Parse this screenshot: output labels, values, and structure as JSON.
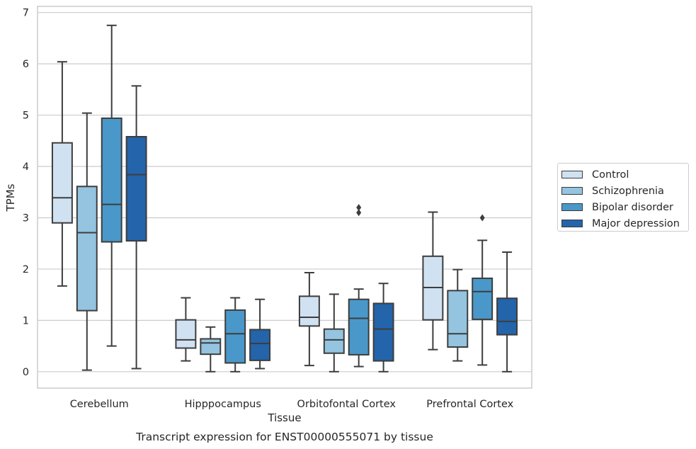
{
  "chart_data": {
    "type": "box",
    "title": "Transcript expression for ENST00000555071 by tissue",
    "xlabel": "Tissue",
    "ylabel": "TPMs",
    "ylim": [
      -0.32,
      7.12
    ],
    "yticks": [
      "0",
      "1",
      "2",
      "3",
      "4",
      "5",
      "6",
      "7"
    ],
    "categories": [
      "Cerebellum",
      "Hipppocampus",
      "Orbitofontal Cortex",
      "Prefrontal Cortex"
    ],
    "grid": true,
    "legend_position": "right",
    "series": [
      {
        "name": "Control",
        "color": "#d0e1f2",
        "boxes": [
          {
            "whislo": 1.67,
            "q1": 2.9,
            "med": 3.39,
            "q3": 4.46,
            "whishi": 6.04,
            "fliers": []
          },
          {
            "whislo": 0.21,
            "q1": 0.46,
            "med": 0.62,
            "q3": 1.01,
            "whishi": 1.44,
            "fliers": []
          },
          {
            "whislo": 0.12,
            "q1": 0.89,
            "med": 1.06,
            "q3": 1.47,
            "whishi": 1.93,
            "fliers": []
          },
          {
            "whislo": 0.43,
            "q1": 1.01,
            "med": 1.64,
            "q3": 2.25,
            "whishi": 3.11,
            "fliers": []
          }
        ]
      },
      {
        "name": "Schizophrenia",
        "color": "#94c4df",
        "boxes": [
          {
            "whislo": 0.03,
            "q1": 1.19,
            "med": 2.71,
            "q3": 3.61,
            "whishi": 5.04,
            "fliers": []
          },
          {
            "whislo": 0.0,
            "q1": 0.34,
            "med": 0.56,
            "q3": 0.64,
            "whishi": 0.87,
            "fliers": []
          },
          {
            "whislo": 0.0,
            "q1": 0.36,
            "med": 0.62,
            "q3": 0.83,
            "whishi": 1.51,
            "fliers": []
          },
          {
            "whislo": 0.21,
            "q1": 0.48,
            "med": 0.74,
            "q3": 1.58,
            "whishi": 1.99,
            "fliers": []
          }
        ]
      },
      {
        "name": "Bipolar disorder",
        "color": "#4a98c9",
        "boxes": [
          {
            "whislo": 0.5,
            "q1": 2.53,
            "med": 3.26,
            "q3": 4.94,
            "whishi": 6.75,
            "fliers": []
          },
          {
            "whislo": 0.0,
            "q1": 0.17,
            "med": 0.74,
            "q3": 1.2,
            "whishi": 1.44,
            "fliers": []
          },
          {
            "whislo": 0.1,
            "q1": 0.33,
            "med": 1.04,
            "q3": 1.41,
            "whishi": 1.61,
            "fliers": [
              3.1,
              3.2
            ]
          },
          {
            "whislo": 0.13,
            "q1": 1.02,
            "med": 1.56,
            "q3": 1.82,
            "whishi": 2.56,
            "fliers": [
              3.0
            ]
          }
        ]
      },
      {
        "name": "Major depression",
        "color": "#2464aa",
        "boxes": [
          {
            "whislo": 0.06,
            "q1": 2.55,
            "med": 3.84,
            "q3": 4.58,
            "whishi": 5.57,
            "fliers": []
          },
          {
            "whislo": 0.06,
            "q1": 0.22,
            "med": 0.55,
            "q3": 0.82,
            "whishi": 1.41,
            "fliers": []
          },
          {
            "whislo": 0.0,
            "q1": 0.21,
            "med": 0.83,
            "q3": 1.33,
            "whishi": 1.72,
            "fliers": []
          },
          {
            "whislo": 0.0,
            "q1": 0.72,
            "med": 0.98,
            "q3": 1.43,
            "whishi": 2.33,
            "fliers": []
          }
        ]
      }
    ]
  }
}
